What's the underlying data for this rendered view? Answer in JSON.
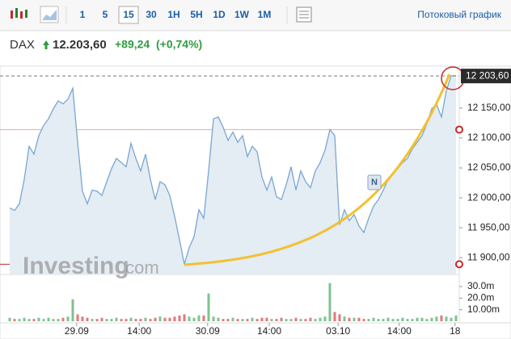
{
  "toolbar": {
    "intervals": [
      "1",
      "5",
      "15",
      "30",
      "1H",
      "5H",
      "1D",
      "1W",
      "1M"
    ],
    "selected": 2,
    "stream_link": "Потоковый график"
  },
  "header": {
    "symbol": "DAX",
    "price": "12.203,60",
    "change": "+89,24",
    "change_pct": "(+0,74%)"
  },
  "chart_data": {
    "type": "line",
    "color": "#7aa6d0",
    "fill": "#e4ecf4",
    "x": [
      0,
      1,
      2,
      3,
      4,
      5,
      6,
      7,
      8,
      9,
      10,
      11,
      12,
      13,
      14,
      15,
      16,
      17,
      18,
      19,
      20,
      21,
      22,
      23,
      24,
      25,
      26,
      27,
      28,
      29,
      30,
      31,
      32,
      33,
      34,
      35,
      36,
      37,
      38,
      39,
      40,
      41,
      42,
      43,
      44,
      45,
      46,
      47,
      48,
      49,
      50,
      51,
      52,
      53,
      54,
      55,
      56,
      57,
      58,
      59,
      60,
      61,
      62,
      63,
      64,
      65,
      66,
      67,
      68,
      69,
      70,
      71,
      72,
      73,
      74,
      75,
      76,
      77,
      78,
      79,
      80,
      81,
      82,
      83,
      84,
      85,
      86,
      87,
      88,
      89,
      90,
      91,
      92
    ],
    "values": [
      11983,
      11979,
      11990,
      12031,
      12086,
      12073,
      12104,
      12121,
      12132,
      12149,
      12162,
      12157,
      12165,
      12183,
      12093,
      12011,
      11990,
      12013,
      12011,
      12004,
      12027,
      12049,
      12066,
      12059,
      12052,
      12091,
      12066,
      12045,
      12073,
      12031,
      11997,
      12027,
      12022,
      12004,
      11969,
      11930,
      11889,
      11917,
      11935,
      11980,
      11966,
      12045,
      12132,
      12135,
      12118,
      12096,
      12110,
      12093,
      12104,
      12069,
      12086,
      12077,
      12035,
      12013,
      12035,
      12002,
      11997,
      12022,
      12052,
      12013,
      12045,
      12027,
      12017,
      12045,
      12059,
      12080,
      12114,
      12104,
      11955,
      11980,
      11962,
      11972,
      11953,
      11942,
      11966,
      11986,
      11997,
      12013,
      12031,
      12041,
      12049,
      12059,
      12066,
      12082,
      12093,
      12104,
      12124,
      12149,
      12156,
      12135,
      12179,
      12204,
      12204
    ],
    "xlim": [
      -2,
      92.67
    ],
    "xticks": [
      {
        "value": 13.8,
        "label": "29.09"
      },
      {
        "value": 26.7,
        "label": "14:00"
      },
      {
        "value": 40.8,
        "label": "30.09"
      },
      {
        "value": 53.5,
        "label": "14:00"
      },
      {
        "value": 67.7,
        "label": "03.10"
      },
      {
        "value": 80.3,
        "label": "14:00"
      },
      {
        "value": 91.8,
        "label": "18"
      }
    ],
    "ylim": [
      11872,
      12220
    ],
    "yticks": [
      {
        "value": 11900,
        "label": "11 900,00"
      },
      {
        "value": 11950,
        "label": "11 950,00"
      },
      {
        "value": 12000,
        "label": "12 000,00"
      },
      {
        "value": 12050,
        "label": "12 050,00"
      },
      {
        "value": 12100,
        "label": "12 100,00"
      },
      {
        "value": 12150,
        "label": "12 150,00"
      }
    ],
    "last_value": {
      "value": 12203.6,
      "label": "12 203,60"
    },
    "reference_lines": [
      {
        "value": 12114,
        "color": "#f2a3a3"
      },
      {
        "value": 11889,
        "color": "#c62828"
      }
    ],
    "annotation": "N",
    "watermark": [
      "Investing",
      ".com"
    ],
    "volume": {
      "values": [
        3,
        2,
        2,
        3,
        2,
        2,
        3,
        2,
        3,
        2,
        2,
        3,
        4,
        19,
        6,
        4,
        3,
        2,
        2,
        3,
        2,
        2,
        3,
        2,
        2,
        3,
        2,
        2,
        3,
        2,
        3,
        4,
        3,
        3,
        4,
        5,
        6,
        4,
        3,
        5,
        5,
        24,
        4,
        3,
        2,
        2,
        3,
        2,
        2,
        2,
        3,
        2,
        3,
        3,
        2,
        2,
        3,
        2,
        2,
        3,
        2,
        2,
        3,
        2,
        3,
        4,
        33,
        8,
        6,
        4,
        3,
        3,
        3,
        2,
        2,
        3,
        2,
        2,
        3,
        2,
        2,
        3,
        2,
        2,
        3,
        3,
        2,
        3,
        4,
        5,
        4,
        3,
        5
      ],
      "up_color": "#7fc28f",
      "down_color": "#e07a7a",
      "ylim": [
        0,
        37
      ],
      "yticks": [
        {
          "value": 30,
          "label": "30.0m"
        },
        {
          "value": 20,
          "label": "20.0m"
        },
        {
          "value": 10,
          "label": "10.00m"
        }
      ]
    }
  }
}
